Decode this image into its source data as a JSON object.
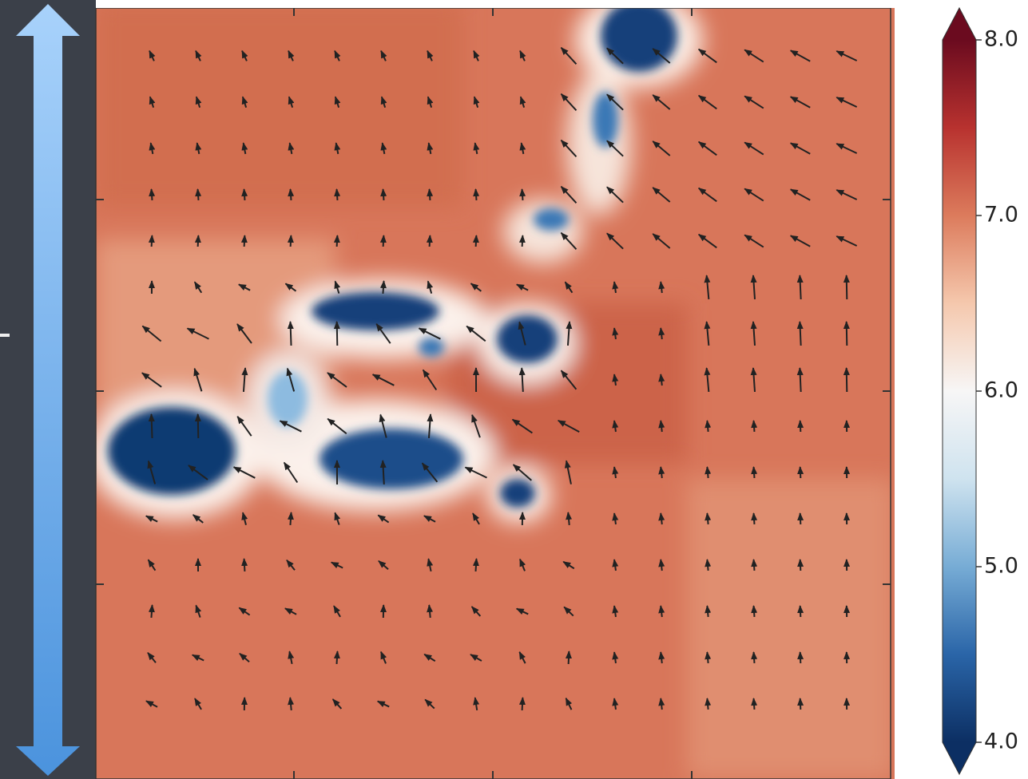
{
  "chart_data": {
    "type": "contour",
    "colormap": "RdBu_r",
    "clim": [
      4,
      8
    ],
    "extend": "both",
    "cticks": [
      {
        "value": 8,
        "label": "8.0"
      },
      {
        "value": 7,
        "label": "7.0"
      },
      {
        "value": 6,
        "label": "6.0"
      },
      {
        "value": 5,
        "label": "5.0"
      },
      {
        "value": 4,
        "label": "4.0"
      }
    ]
  }
}
